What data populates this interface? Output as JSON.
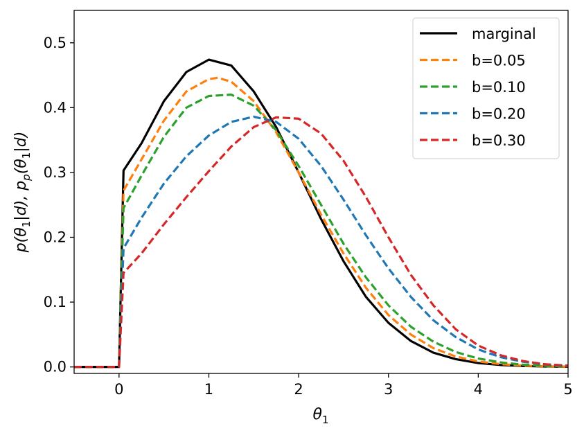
{
  "chart_data": {
    "type": "line",
    "xlabel": "θ1",
    "ylabel": "p(θ1|d), pp(θ1|d)",
    "xlim": [
      -0.5,
      5
    ],
    "ylim": [
      -0.01,
      0.55
    ],
    "xticks": [
      0,
      1,
      2,
      3,
      4,
      5
    ],
    "xtick_labels": [
      "0",
      "1",
      "2",
      "3",
      "4",
      "5"
    ],
    "yticks": [
      0.0,
      0.1,
      0.2,
      0.3,
      0.4,
      0.5
    ],
    "ytick_labels": [
      "0.0",
      "0.1",
      "0.2",
      "0.3",
      "0.4",
      "0.5"
    ],
    "grid": false,
    "legend_position": "top-right",
    "series": [
      {
        "name": "marginal",
        "color": "#000000",
        "style": "solid",
        "x": [
          -0.5,
          0.0,
          0.05,
          0.25,
          0.5,
          0.75,
          1.0,
          1.25,
          1.5,
          1.75,
          2.0,
          2.25,
          2.5,
          2.75,
          3.0,
          3.25,
          3.5,
          3.75,
          4.0,
          4.25,
          4.5,
          4.75,
          5.0
        ],
        "y": [
          0.0,
          0.0,
          0.303,
          0.345,
          0.41,
          0.455,
          0.474,
          0.465,
          0.425,
          0.37,
          0.3,
          0.228,
          0.163,
          0.108,
          0.068,
          0.04,
          0.022,
          0.012,
          0.006,
          0.003,
          0.0015,
          0.0007,
          0.0003
        ]
      },
      {
        "name": "b=0.05",
        "color": "#ff7f0e",
        "style": "dashed",
        "x": [
          -0.5,
          0.0,
          0.05,
          0.25,
          0.5,
          0.75,
          1.0,
          1.1,
          1.25,
          1.5,
          1.75,
          2.0,
          2.25,
          2.5,
          2.75,
          3.0,
          3.25,
          3.5,
          3.75,
          4.0,
          4.25,
          4.5,
          4.75,
          5.0
        ],
        "y": [
          0.0,
          0.0,
          0.272,
          0.32,
          0.38,
          0.425,
          0.444,
          0.446,
          0.44,
          0.41,
          0.362,
          0.3,
          0.235,
          0.175,
          0.122,
          0.08,
          0.05,
          0.029,
          0.016,
          0.0085,
          0.0043,
          0.002,
          0.0009,
          0.0004
        ]
      },
      {
        "name": "b=0.10",
        "color": "#2ca02c",
        "style": "dashed",
        "x": [
          -0.5,
          0.0,
          0.05,
          0.25,
          0.5,
          0.75,
          1.0,
          1.25,
          1.5,
          1.75,
          2.0,
          2.25,
          2.5,
          2.75,
          3.0,
          3.25,
          3.5,
          3.75,
          4.0,
          4.25,
          4.5,
          4.75,
          5.0
        ],
        "y": [
          0.0,
          0.0,
          0.245,
          0.295,
          0.355,
          0.4,
          0.418,
          0.42,
          0.403,
          0.365,
          0.31,
          0.25,
          0.19,
          0.138,
          0.095,
          0.062,
          0.039,
          0.023,
          0.013,
          0.007,
          0.0035,
          0.0017,
          0.0008
        ]
      },
      {
        "name": "b=0.20",
        "color": "#1f77b4",
        "style": "dashed",
        "x": [
          -0.5,
          0.0,
          0.05,
          0.25,
          0.5,
          0.75,
          1.0,
          1.25,
          1.5,
          1.75,
          2.0,
          2.25,
          2.5,
          2.75,
          3.0,
          3.25,
          3.5,
          3.75,
          4.0,
          4.25,
          4.5,
          4.75,
          5.0
        ],
        "y": [
          0.0,
          0.0,
          0.183,
          0.23,
          0.283,
          0.325,
          0.357,
          0.378,
          0.386,
          0.378,
          0.352,
          0.31,
          0.258,
          0.203,
          0.152,
          0.108,
          0.072,
          0.046,
          0.027,
          0.015,
          0.008,
          0.004,
          0.002
        ]
      },
      {
        "name": "b=0.30",
        "color": "#d62728",
        "style": "dashed",
        "x": [
          -0.5,
          0.0,
          0.05,
          0.25,
          0.5,
          0.75,
          1.0,
          1.25,
          1.5,
          1.75,
          2.0,
          2.25,
          2.5,
          2.75,
          3.0,
          3.25,
          3.5,
          3.75,
          4.0,
          4.25,
          4.5,
          4.75,
          5.0
        ],
        "y": [
          0.0,
          0.0,
          0.145,
          0.175,
          0.22,
          0.262,
          0.302,
          0.34,
          0.37,
          0.385,
          0.383,
          0.36,
          0.318,
          0.262,
          0.2,
          0.142,
          0.095,
          0.058,
          0.033,
          0.018,
          0.009,
          0.004,
          0.0018
        ]
      }
    ]
  }
}
